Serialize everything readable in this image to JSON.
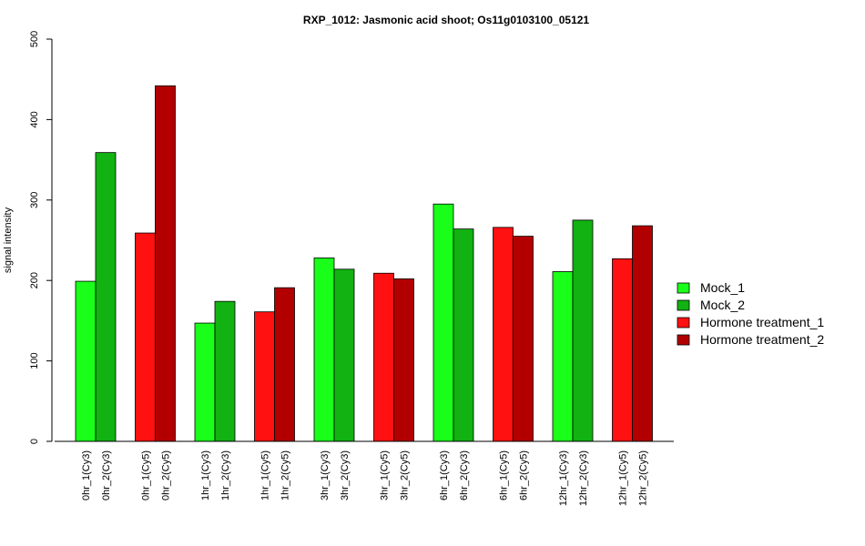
{
  "chart_data": {
    "type": "bar",
    "title": "RXP_1012: Jasmonic acid shoot; Os11g0103100_05121",
    "ylabel": "signal intensity",
    "xlabel": "",
    "ylim": [
      0,
      500
    ],
    "yticks": [
      0,
      100,
      200,
      300,
      400,
      500
    ],
    "grid": false,
    "legend_position": "right",
    "legend": [
      {
        "name": "Mock_1",
        "color": "#19ff19"
      },
      {
        "name": "Mock_2",
        "color": "#11b211"
      },
      {
        "name": "Hormone treatment_1",
        "color": "#ff1111"
      },
      {
        "name": "Hormone treatment_2",
        "color": "#b20000"
      }
    ],
    "groups": [
      {
        "bars": [
          {
            "label": "0hr_1(Cy3)",
            "value": 199,
            "series": 0
          },
          {
            "label": "0hr_2(Cy3)",
            "value": 359,
            "series": 1
          }
        ]
      },
      {
        "bars": [
          {
            "label": "0hr_1(Cy5)",
            "value": 259,
            "series": 2
          },
          {
            "label": "0hr_2(Cy5)",
            "value": 442,
            "series": 3
          }
        ]
      },
      {
        "bars": [
          {
            "label": "1hr_1(Cy3)",
            "value": 147,
            "series": 0
          },
          {
            "label": "1hr_2(Cy3)",
            "value": 174,
            "series": 1
          }
        ]
      },
      {
        "bars": [
          {
            "label": "1hr_1(Cy5)",
            "value": 161,
            "series": 2
          },
          {
            "label": "1hr_2(Cy5)",
            "value": 191,
            "series": 3
          }
        ]
      },
      {
        "bars": [
          {
            "label": "3hr_1(Cy3)",
            "value": 228,
            "series": 0
          },
          {
            "label": "3hr_2(Cy3)",
            "value": 214,
            "series": 1
          }
        ]
      },
      {
        "bars": [
          {
            "label": "3hr_1(Cy5)",
            "value": 209,
            "series": 2
          },
          {
            "label": "3hr_2(Cy5)",
            "value": 202,
            "series": 3
          }
        ]
      },
      {
        "bars": [
          {
            "label": "6hr_1(Cy3)",
            "value": 295,
            "series": 0
          },
          {
            "label": "6hr_2(Cy3)",
            "value": 264,
            "series": 1
          }
        ]
      },
      {
        "bars": [
          {
            "label": "6hr_1(Cy5)",
            "value": 266,
            "series": 2
          },
          {
            "label": "6hr_2(Cy5)",
            "value": 255,
            "series": 3
          }
        ]
      },
      {
        "bars": [
          {
            "label": "12hr_1(Cy3)",
            "value": 211,
            "series": 0
          },
          {
            "label": "12hr_2(Cy3)",
            "value": 275,
            "series": 1
          }
        ]
      },
      {
        "bars": [
          {
            "label": "12hr_1(Cy5)",
            "value": 227,
            "series": 2
          },
          {
            "label": "12hr_2(Cy5)",
            "value": 268,
            "series": 3
          }
        ]
      }
    ]
  }
}
